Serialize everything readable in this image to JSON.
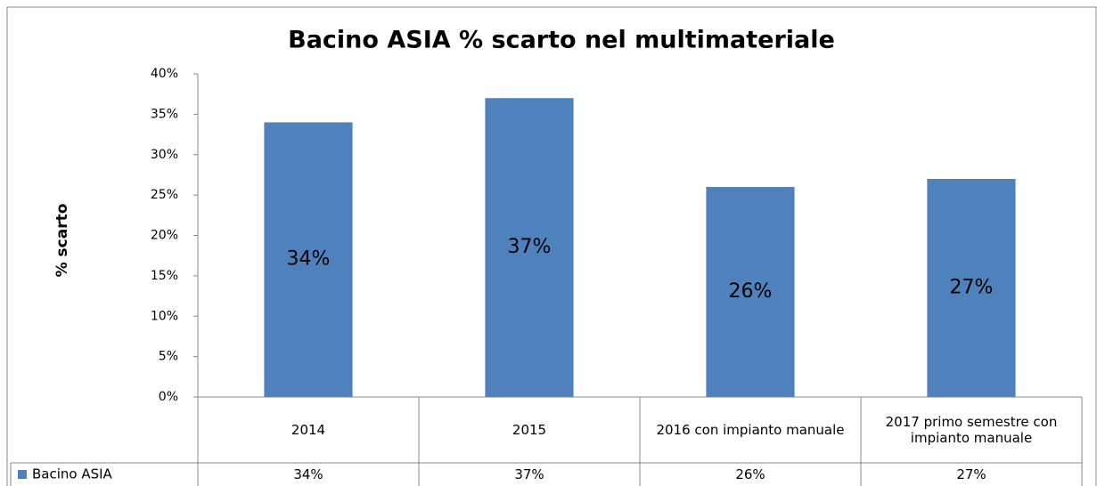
{
  "chart_data": {
    "type": "bar",
    "title": "Bacino ASIA % scarto nel multimateriale",
    "y_label": "% scarto",
    "categories": [
      "2014",
      "2015",
      "2016 con impianto manuale",
      "2017 primo semestre con impianto manuale"
    ],
    "series": [
      {
        "name": "Bacino ASIA",
        "color": "#4f81bd",
        "values": [
          34,
          37,
          26,
          27
        ],
        "value_labels": [
          "34%",
          "37%",
          "26%",
          "27%"
        ]
      }
    ],
    "ylim": [
      0,
      40
    ],
    "yticks": [
      {
        "value": 0,
        "label": "0%"
      },
      {
        "value": 5,
        "label": "5%"
      },
      {
        "value": 10,
        "label": "10%"
      },
      {
        "value": 15,
        "label": "15%"
      },
      {
        "value": 20,
        "label": "20%"
      },
      {
        "value": 25,
        "label": "25%"
      },
      {
        "value": 30,
        "label": "30%"
      },
      {
        "value": 35,
        "label": "35%"
      },
      {
        "value": 40,
        "label": "40%"
      }
    ],
    "data_table": true
  }
}
